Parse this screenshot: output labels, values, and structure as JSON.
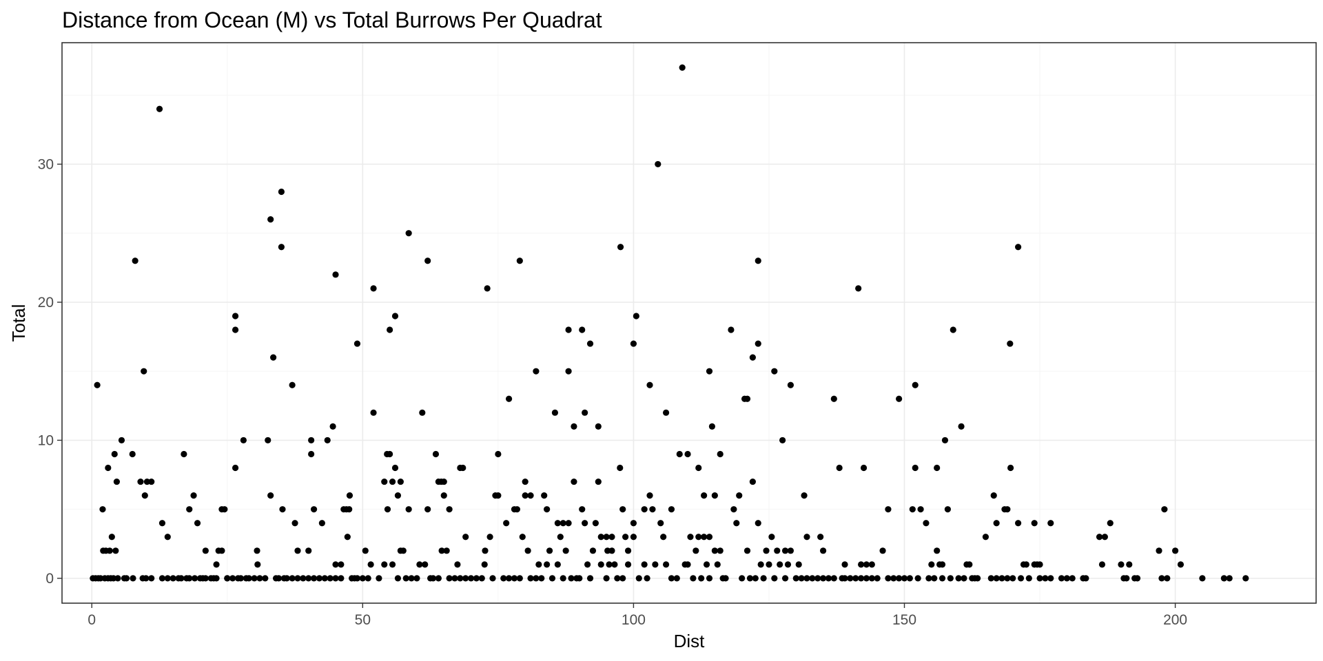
{
  "chart_data": {
    "type": "scatter",
    "title": "Distance from Ocean (M) vs Total Burrows Per Quadrat",
    "xlabel": "Dist",
    "ylabel": "Total",
    "xlim": [
      -5.5,
      226
    ],
    "ylim": [
      -1.8,
      38.8
    ],
    "x_ticks": [
      0,
      50,
      100,
      150,
      200
    ],
    "y_ticks": [
      0,
      10,
      20,
      30
    ],
    "x_tick_labels": [
      "0",
      "50",
      "100",
      "150",
      "200"
    ],
    "y_tick_labels": [
      "0",
      "10",
      "20",
      "30"
    ],
    "grid": true,
    "legend": "none",
    "theme": "bw",
    "point_color": "#000000",
    "grid_color": "#ebebeb",
    "border_color": "#333333",
    "points": [
      [
        0.2,
        0
      ],
      [
        0.7,
        0
      ],
      [
        1,
        14
      ],
      [
        1.2,
        0
      ],
      [
        1.6,
        0
      ],
      [
        2,
        5
      ],
      [
        2.1,
        2
      ],
      [
        2.4,
        0
      ],
      [
        2.6,
        2
      ],
      [
        3,
        8
      ],
      [
        3,
        0
      ],
      [
        3.3,
        2
      ],
      [
        3.5,
        0
      ],
      [
        3.7,
        3
      ],
      [
        4,
        0
      ],
      [
        4.2,
        9
      ],
      [
        4.4,
        2
      ],
      [
        4.6,
        7
      ],
      [
        4.8,
        0
      ],
      [
        5.5,
        10
      ],
      [
        6,
        0
      ],
      [
        6.4,
        0
      ],
      [
        7.5,
        9
      ],
      [
        7.6,
        0
      ],
      [
        8,
        23
      ],
      [
        9,
        7
      ],
      [
        9.4,
        0
      ],
      [
        9.6,
        15
      ],
      [
        9.8,
        6
      ],
      [
        10,
        0
      ],
      [
        10.2,
        7
      ],
      [
        11,
        7
      ],
      [
        11,
        0
      ],
      [
        12.5,
        34
      ],
      [
        13,
        4
      ],
      [
        13,
        0
      ],
      [
        14,
        3
      ],
      [
        14,
        0
      ],
      [
        15,
        0
      ],
      [
        16,
        0
      ],
      [
        16.5,
        0
      ],
      [
        17,
        9
      ],
      [
        17.5,
        0
      ],
      [
        18,
        5
      ],
      [
        18,
        0
      ],
      [
        18.8,
        6
      ],
      [
        19,
        0
      ],
      [
        19.5,
        4
      ],
      [
        20,
        0
      ],
      [
        20.5,
        0
      ],
      [
        21,
        2
      ],
      [
        21,
        0
      ],
      [
        22,
        0
      ],
      [
        22.5,
        0
      ],
      [
        23,
        1
      ],
      [
        23,
        0
      ],
      [
        23.4,
        2
      ],
      [
        24,
        5
      ],
      [
        24,
        2
      ],
      [
        24.5,
        5
      ],
      [
        25,
        0
      ],
      [
        25,
        0
      ],
      [
        26,
        0
      ],
      [
        26.5,
        19
      ],
      [
        26.5,
        18
      ],
      [
        26.5,
        8
      ],
      [
        27,
        0
      ],
      [
        27.5,
        0
      ],
      [
        28,
        10
      ],
      [
        28.5,
        0
      ],
      [
        29,
        0
      ],
      [
        30,
        0
      ],
      [
        30.5,
        2
      ],
      [
        30.6,
        1
      ],
      [
        31,
        0
      ],
      [
        32,
        0
      ],
      [
        32.5,
        10
      ],
      [
        33,
        6
      ],
      [
        33,
        26
      ],
      [
        33.5,
        16
      ],
      [
        34,
        0
      ],
      [
        34.5,
        0
      ],
      [
        35,
        28
      ],
      [
        35,
        24
      ],
      [
        35.2,
        5
      ],
      [
        35.5,
        0
      ],
      [
        36,
        0
      ],
      [
        37,
        14
      ],
      [
        37,
        0
      ],
      [
        37.5,
        4
      ],
      [
        38,
        2
      ],
      [
        38,
        0
      ],
      [
        39,
        0
      ],
      [
        40,
        2
      ],
      [
        40,
        0
      ],
      [
        40.5,
        10
      ],
      [
        40.5,
        9
      ],
      [
        41,
        5
      ],
      [
        41,
        0
      ],
      [
        42,
        0
      ],
      [
        42.5,
        4
      ],
      [
        43,
        0
      ],
      [
        43.5,
        10
      ],
      [
        44,
        0
      ],
      [
        44.5,
        11
      ],
      [
        45,
        22
      ],
      [
        45,
        1
      ],
      [
        45,
        0
      ],
      [
        46,
        1
      ],
      [
        46,
        0
      ],
      [
        46.5,
        5
      ],
      [
        47,
        5
      ],
      [
        47.2,
        3
      ],
      [
        47.6,
        6
      ],
      [
        47.5,
        5
      ],
      [
        48,
        0
      ],
      [
        48.5,
        0
      ],
      [
        49,
        17
      ],
      [
        49,
        0
      ],
      [
        50,
        0
      ],
      [
        50.5,
        2
      ],
      [
        51,
        0
      ],
      [
        51.5,
        1
      ],
      [
        52,
        21
      ],
      [
        52,
        12
      ],
      [
        53,
        0
      ],
      [
        54,
        1
      ],
      [
        54,
        7
      ],
      [
        54.5,
        9
      ],
      [
        54.6,
        5
      ],
      [
        55,
        18
      ],
      [
        55,
        9
      ],
      [
        55.5,
        1
      ],
      [
        55.5,
        7
      ],
      [
        56,
        19
      ],
      [
        56,
        8
      ],
      [
        56.5,
        0
      ],
      [
        56.5,
        6
      ],
      [
        57,
        7
      ],
      [
        57,
        2
      ],
      [
        57.5,
        2
      ],
      [
        58,
        0
      ],
      [
        58.5,
        25
      ],
      [
        58.5,
        5
      ],
      [
        59,
        0
      ],
      [
        60,
        0
      ],
      [
        60.5,
        1
      ],
      [
        61,
        12
      ],
      [
        61.5,
        1
      ],
      [
        62,
        23
      ],
      [
        62,
        5
      ],
      [
        62.5,
        0
      ],
      [
        63,
        0
      ],
      [
        63.5,
        9
      ],
      [
        64,
        7
      ],
      [
        64,
        0
      ],
      [
        64.5,
        7
      ],
      [
        64.6,
        2
      ],
      [
        65,
        6
      ],
      [
        65,
        7
      ],
      [
        65.5,
        2
      ],
      [
        66,
        0
      ],
      [
        66,
        5
      ],
      [
        67,
        0
      ],
      [
        67.5,
        1
      ],
      [
        68,
        0
      ],
      [
        68,
        8
      ],
      [
        68.5,
        8
      ],
      [
        69,
        0
      ],
      [
        69,
        3
      ],
      [
        70,
        0
      ],
      [
        71,
        0
      ],
      [
        72,
        0
      ],
      [
        72.5,
        1
      ],
      [
        72.6,
        2
      ],
      [
        73,
        21
      ],
      [
        73.5,
        3
      ],
      [
        74,
        0
      ],
      [
        74.5,
        6
      ],
      [
        75,
        6
      ],
      [
        75,
        9
      ],
      [
        76,
        0
      ],
      [
        76.5,
        4
      ],
      [
        77,
        13
      ],
      [
        77,
        0
      ],
      [
        78,
        0
      ],
      [
        78,
        5
      ],
      [
        78.5,
        5
      ],
      [
        79,
        23
      ],
      [
        79,
        0
      ],
      [
        79.5,
        3
      ],
      [
        80,
        6
      ],
      [
        80,
        7
      ],
      [
        80.5,
        2
      ],
      [
        81,
        6
      ],
      [
        81,
        0
      ],
      [
        82,
        15
      ],
      [
        82,
        0
      ],
      [
        82.5,
        1
      ],
      [
        83,
        0
      ],
      [
        83.5,
        6
      ],
      [
        84,
        5
      ],
      [
        84,
        1
      ],
      [
        84.5,
        2
      ],
      [
        85,
        0
      ],
      [
        85.5,
        12
      ],
      [
        86,
        4
      ],
      [
        86,
        1
      ],
      [
        86.5,
        3
      ],
      [
        87,
        0
      ],
      [
        87,
        4
      ],
      [
        87.5,
        2
      ],
      [
        88,
        15
      ],
      [
        88,
        18
      ],
      [
        88,
        4
      ],
      [
        88.5,
        0
      ],
      [
        89,
        11
      ],
      [
        89,
        7
      ],
      [
        89.5,
        0
      ],
      [
        90,
        0
      ],
      [
        90.5,
        18
      ],
      [
        90.5,
        5
      ],
      [
        91,
        12
      ],
      [
        91,
        4
      ],
      [
        91.5,
        1
      ],
      [
        92,
        17
      ],
      [
        92,
        0
      ],
      [
        92.5,
        2
      ],
      [
        93,
        4
      ],
      [
        93.5,
        11
      ],
      [
        93.5,
        7
      ],
      [
        94,
        3
      ],
      [
        94,
        1
      ],
      [
        95,
        0
      ],
      [
        95,
        3
      ],
      [
        95.2,
        2
      ],
      [
        95.5,
        1
      ],
      [
        96,
        2
      ],
      [
        96,
        3
      ],
      [
        96.5,
        1
      ],
      [
        97,
        0
      ],
      [
        97.5,
        8
      ],
      [
        97.6,
        24
      ],
      [
        98,
        5
      ],
      [
        98,
        0
      ],
      [
        98.5,
        3
      ],
      [
        99,
        2
      ],
      [
        99,
        1
      ],
      [
        100,
        17
      ],
      [
        100,
        3
      ],
      [
        100.5,
        19
      ],
      [
        100,
        4
      ],
      [
        101,
        0
      ],
      [
        102,
        5
      ],
      [
        102,
        1
      ],
      [
        102.5,
        0
      ],
      [
        103,
        6
      ],
      [
        103,
        14
      ],
      [
        103.5,
        5
      ],
      [
        104,
        1
      ],
      [
        104.5,
        30
      ],
      [
        105,
        4
      ],
      [
        105.5,
        3
      ],
      [
        106,
        12
      ],
      [
        106,
        1
      ],
      [
        107,
        0
      ],
      [
        107,
        5
      ],
      [
        108,
        0
      ],
      [
        108.5,
        9
      ],
      [
        109,
        37
      ],
      [
        109.5,
        1
      ],
      [
        110,
        9
      ],
      [
        110,
        1
      ],
      [
        110.5,
        3
      ],
      [
        111,
        0
      ],
      [
        111.5,
        2
      ],
      [
        112,
        8
      ],
      [
        112,
        3
      ],
      [
        112.5,
        0
      ],
      [
        113,
        6
      ],
      [
        113,
        3
      ],
      [
        113.5,
        1
      ],
      [
        114,
        0
      ],
      [
        114,
        15
      ],
      [
        114,
        3
      ],
      [
        114.5,
        11
      ],
      [
        115,
        2
      ],
      [
        115,
        6
      ],
      [
        115.5,
        1
      ],
      [
        116,
        9
      ],
      [
        116,
        2
      ],
      [
        116.5,
        0
      ],
      [
        117,
        0
      ],
      [
        118,
        18
      ],
      [
        118.5,
        5
      ],
      [
        119,
        4
      ],
      [
        119.5,
        6
      ],
      [
        120,
        0
      ],
      [
        120.5,
        13
      ],
      [
        121,
        13
      ],
      [
        121,
        2
      ],
      [
        121.5,
        0
      ],
      [
        122,
        16
      ],
      [
        122,
        7
      ],
      [
        122.5,
        0
      ],
      [
        123,
        23
      ],
      [
        123,
        17
      ],
      [
        123,
        4
      ],
      [
        123.5,
        1
      ],
      [
        124,
        0
      ],
      [
        124.5,
        2
      ],
      [
        125,
        1
      ],
      [
        125.5,
        3
      ],
      [
        126,
        0
      ],
      [
        126,
        15
      ],
      [
        126.5,
        2
      ],
      [
        127,
        1
      ],
      [
        127.5,
        10
      ],
      [
        128,
        2
      ],
      [
        128,
        0
      ],
      [
        128.5,
        1
      ],
      [
        129,
        14
      ],
      [
        129,
        2
      ],
      [
        130,
        0
      ],
      [
        130.5,
        1
      ],
      [
        131,
        0
      ],
      [
        131.5,
        6
      ],
      [
        132,
        3
      ],
      [
        132,
        0
      ],
      [
        133,
        0
      ],
      [
        134,
        0
      ],
      [
        134.5,
        3
      ],
      [
        135,
        2
      ],
      [
        135,
        0
      ],
      [
        136,
        0
      ],
      [
        137,
        13
      ],
      [
        137,
        0
      ],
      [
        138,
        8
      ],
      [
        138.5,
        0
      ],
      [
        139,
        1
      ],
      [
        139,
        0
      ],
      [
        140,
        0
      ],
      [
        141,
        0
      ],
      [
        141.5,
        21
      ],
      [
        142,
        1
      ],
      [
        142,
        0
      ],
      [
        142.5,
        8
      ],
      [
        143,
        1
      ],
      [
        143,
        0
      ],
      [
        144,
        0
      ],
      [
        144,
        1
      ],
      [
        145,
        0
      ],
      [
        146,
        2
      ],
      [
        147,
        5
      ],
      [
        147,
        0
      ],
      [
        148,
        0
      ],
      [
        149,
        13
      ],
      [
        149,
        0
      ],
      [
        150,
        0
      ],
      [
        151,
        0
      ],
      [
        151.5,
        5
      ],
      [
        152,
        14
      ],
      [
        152,
        8
      ],
      [
        152.5,
        0
      ],
      [
        153,
        5
      ],
      [
        154,
        4
      ],
      [
        154.5,
        0
      ],
      [
        155,
        1
      ],
      [
        155.5,
        0
      ],
      [
        156,
        8
      ],
      [
        156,
        2
      ],
      [
        156.5,
        1
      ],
      [
        157,
        1
      ],
      [
        157,
        0
      ],
      [
        157.5,
        10
      ],
      [
        158,
        5
      ],
      [
        158.5,
        0
      ],
      [
        159,
        18
      ],
      [
        160,
        0
      ],
      [
        160.5,
        11
      ],
      [
        161,
        0
      ],
      [
        161.5,
        1
      ],
      [
        162,
        1
      ],
      [
        162.5,
        0
      ],
      [
        163,
        0
      ],
      [
        163.5,
        0
      ],
      [
        165,
        3
      ],
      [
        166,
        0
      ],
      [
        166.5,
        6
      ],
      [
        167,
        4
      ],
      [
        167,
        0
      ],
      [
        168,
        0
      ],
      [
        168.5,
        5
      ],
      [
        169,
        5
      ],
      [
        169,
        0
      ],
      [
        169.5,
        17
      ],
      [
        169.6,
        8
      ],
      [
        170,
        0
      ],
      [
        171,
        24
      ],
      [
        171,
        4
      ],
      [
        171.5,
        0
      ],
      [
        172,
        1
      ],
      [
        172.5,
        1
      ],
      [
        173,
        0
      ],
      [
        174,
        1
      ],
      [
        174,
        4
      ],
      [
        174.5,
        1
      ],
      [
        175,
        1
      ],
      [
        175,
        0
      ],
      [
        176,
        0
      ],
      [
        177,
        4
      ],
      [
        177,
        0
      ],
      [
        179,
        0
      ],
      [
        180,
        0
      ],
      [
        181,
        0
      ],
      [
        183,
        0
      ],
      [
        183.5,
        0
      ],
      [
        186,
        3
      ],
      [
        186.5,
        1
      ],
      [
        187,
        3
      ],
      [
        188,
        4
      ],
      [
        190,
        1
      ],
      [
        190.5,
        0
      ],
      [
        191,
        0
      ],
      [
        191.5,
        1
      ],
      [
        192.5,
        0
      ],
      [
        193,
        0
      ],
      [
        197,
        2
      ],
      [
        197.5,
        0
      ],
      [
        198,
        5
      ],
      [
        198.5,
        0
      ],
      [
        200,
        2
      ],
      [
        201,
        1
      ],
      [
        205,
        0
      ],
      [
        209,
        0
      ],
      [
        210,
        0
      ],
      [
        213,
        0
      ]
    ]
  }
}
